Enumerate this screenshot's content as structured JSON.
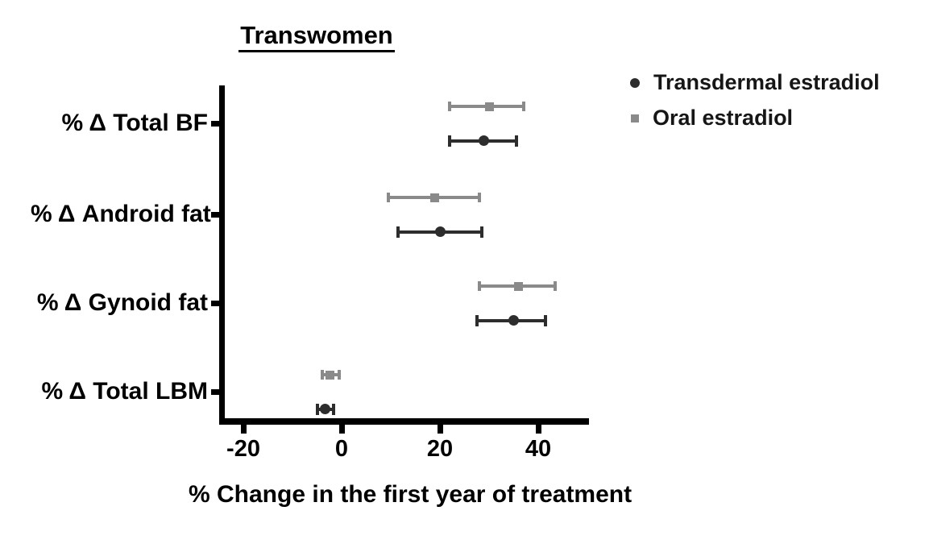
{
  "chart_data": {
    "type": "scatter",
    "subtype": "horizontal-point-estimates-with-error-bars",
    "title": "Transwomen",
    "xlabel": "% Change in the first year of treatment",
    "xticks": [
      -20,
      0,
      20,
      40
    ],
    "xlim": [
      -25,
      50
    ],
    "grid": false,
    "legend_position": "top-right",
    "categories": [
      "% Δ Total BF",
      "% Δ Android fat",
      "% Δ Gynoid fat",
      "% Δ Total LBM"
    ],
    "series": [
      {
        "name": "Transdermal estradiol",
        "marker": "circle",
        "color": "#2d2d2d",
        "values": [
          {
            "category": "% Δ Total BF",
            "mean": 29,
            "lo": 22,
            "hi": 35.5
          },
          {
            "category": "% Δ Android fat",
            "mean": 20,
            "lo": 11.5,
            "hi": 28.5
          },
          {
            "category": "% Δ Gynoid fat",
            "mean": 35,
            "lo": 27.5,
            "hi": 41.5
          },
          {
            "category": "% Δ Total LBM",
            "mean": -3.3,
            "lo": -5,
            "hi": -1.6
          }
        ]
      },
      {
        "name": "Oral estradiol",
        "marker": "square",
        "color": "#8a8a8a",
        "values": [
          {
            "category": "% Δ Total BF",
            "mean": 30,
            "lo": 22,
            "hi": 37
          },
          {
            "category": "% Δ Android fat",
            "mean": 19,
            "lo": 9.5,
            "hi": 28
          },
          {
            "category": "% Δ Gynoid fat",
            "mean": 36,
            "lo": 28,
            "hi": 43.5
          },
          {
            "category": "% Δ Total LBM",
            "mean": -2.3,
            "lo": -4,
            "hi": -0.5
          }
        ]
      }
    ]
  }
}
